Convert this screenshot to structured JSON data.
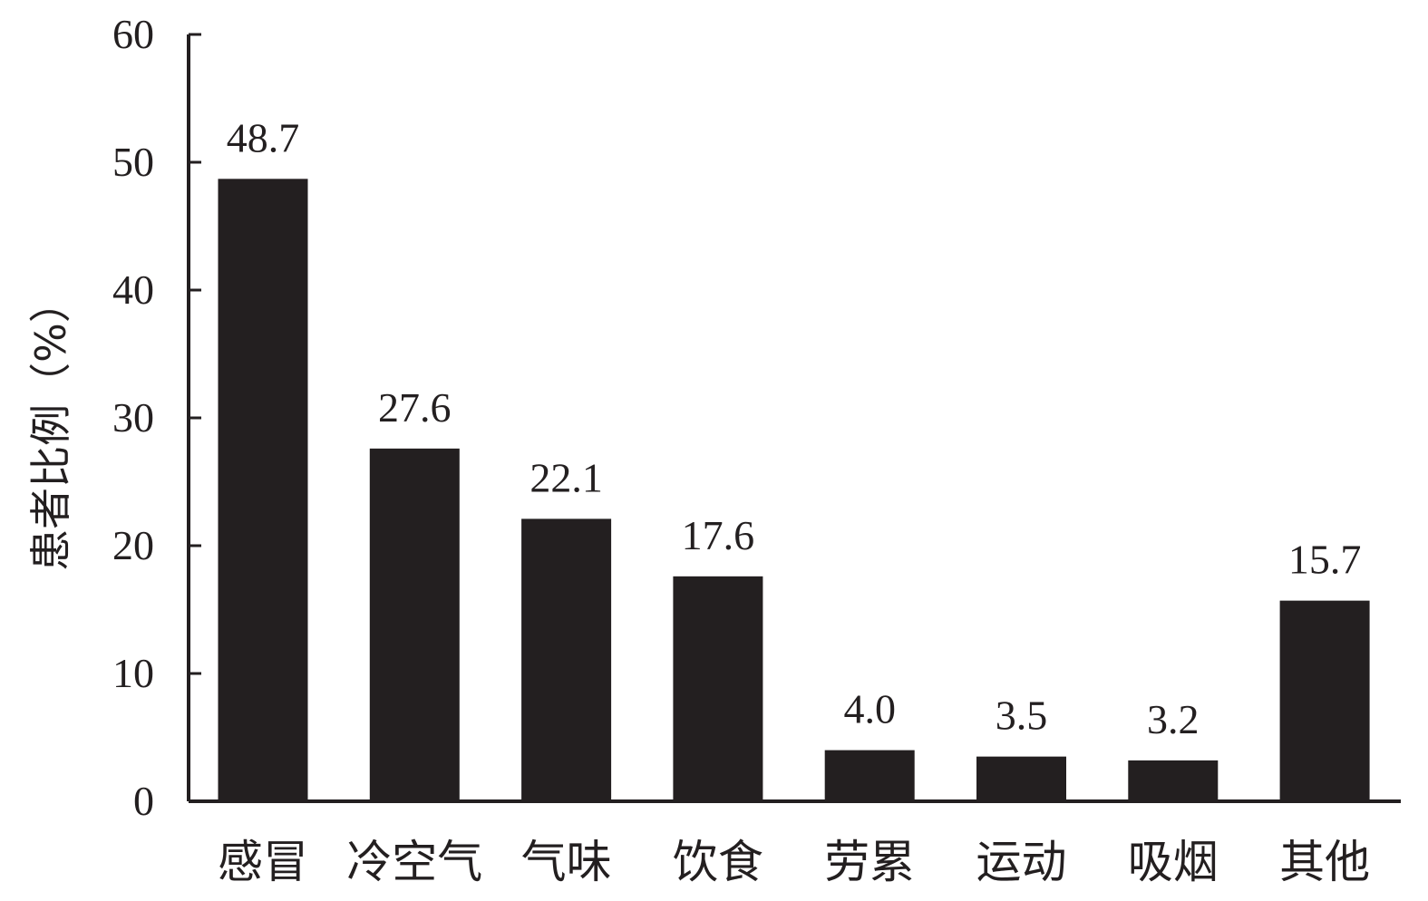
{
  "chart_data": {
    "type": "bar",
    "title": "",
    "xlabel": "",
    "ylabel": "患者比例（%）",
    "categories": [
      "感冒",
      "冷空气",
      "气味",
      "饮食",
      "劳累",
      "运动",
      "吸烟",
      "其他"
    ],
    "values": [
      48.7,
      27.6,
      22.1,
      17.6,
      4.0,
      3.5,
      3.2,
      15.7
    ],
    "value_labels": [
      "48.7",
      "27.6",
      "22.1",
      "17.6",
      "4.0",
      "3.5",
      "3.2",
      "15.7"
    ],
    "ylim": [
      0,
      60
    ],
    "yticks": [
      0,
      10,
      20,
      30,
      40,
      50,
      60
    ],
    "grid": false,
    "legend": "none",
    "bar_color": "#231f20"
  }
}
